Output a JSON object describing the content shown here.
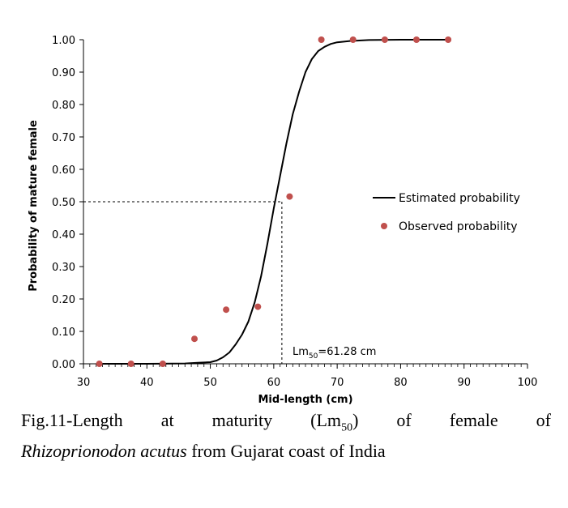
{
  "chart_data": {
    "type": "scatter",
    "title": "",
    "xlabel": "Mid-length (cm)",
    "ylabel": "Probability of mature female",
    "xlim": [
      30,
      100
    ],
    "ylim": [
      0,
      1
    ],
    "x_ticks": [
      "30",
      "40",
      "50",
      "60",
      "70",
      "80",
      "90",
      "100"
    ],
    "y_ticks": [
      "0.00",
      "0.10",
      "0.20",
      "0.30",
      "0.40",
      "0.50",
      "0.60",
      "0.70",
      "0.80",
      "0.90",
      "1.00"
    ],
    "grid": false,
    "legend_position": "right",
    "series": [
      {
        "name": "Estimated probability",
        "kind": "line",
        "color": "#000000",
        "x": [
          32,
          40,
          46,
          48,
          50,
          51,
          52,
          53,
          54,
          55,
          56,
          57,
          58,
          59,
          60,
          61,
          62,
          63,
          64,
          65,
          66,
          67,
          68,
          69,
          70,
          72,
          75,
          80,
          87.5
        ],
        "y": [
          0.0,
          0.0,
          0.001,
          0.003,
          0.005,
          0.01,
          0.02,
          0.035,
          0.06,
          0.09,
          0.13,
          0.19,
          0.27,
          0.37,
          0.48,
          0.58,
          0.68,
          0.77,
          0.84,
          0.9,
          0.94,
          0.965,
          0.978,
          0.987,
          0.992,
          0.996,
          0.999,
          1.0,
          1.0
        ]
      },
      {
        "name": "Observed probability",
        "kind": "scatter",
        "color": "#c0504d",
        "x": [
          32.5,
          37.5,
          42.5,
          47.5,
          52.5,
          57.5,
          62.5,
          67.5,
          72.5,
          77.5,
          82.5,
          87.5
        ],
        "y": [
          0.0,
          0.0,
          0.0,
          0.077,
          0.167,
          0.176,
          0.516,
          1.0,
          1.0,
          1.0,
          1.0,
          1.0
        ]
      }
    ],
    "reference": {
      "x": 61.28,
      "y": 0.5,
      "style": "dashed"
    },
    "annotation": {
      "prefix": "Lm",
      "subscript": "50",
      "suffix": "=61.28 cm"
    }
  },
  "caption": {
    "line1_words": [
      "Fig.11-Length",
      "at",
      "maturity"
    ],
    "lm_open": "(Lm",
    "lm_sub": "50",
    "lm_close": ")",
    "line1_tail": [
      "of",
      "female",
      "of"
    ],
    "species": "Rhizoprionodon acutus",
    "rest": " from Gujarat coast of India"
  }
}
